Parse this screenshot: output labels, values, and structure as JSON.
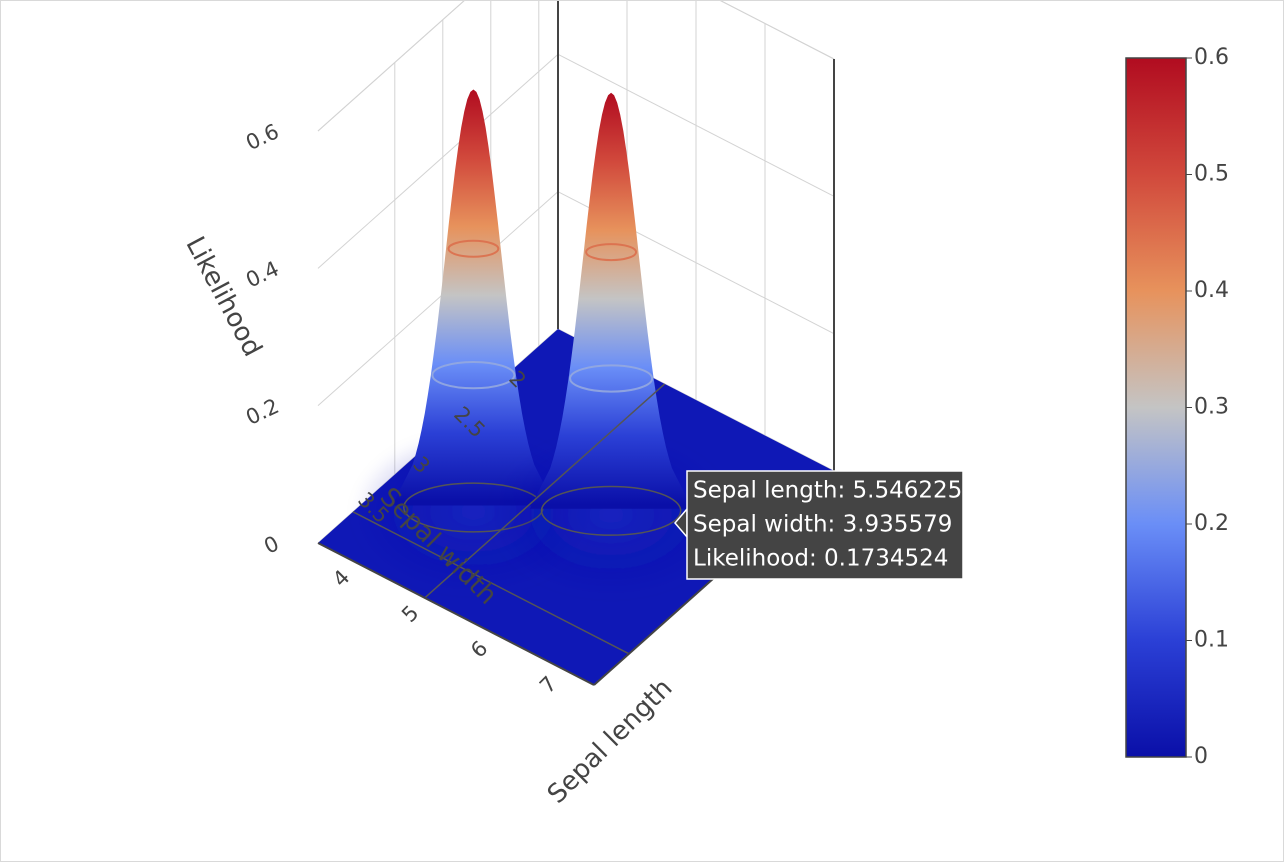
{
  "chart_data": {
    "type": "surface",
    "x_label": "Sepal length",
    "y_label": "Sepal width",
    "z_label": "Likelihood",
    "x_ticks": [
      "4",
      "5",
      "6",
      "7"
    ],
    "y_ticks": [
      "2",
      "2.5",
      "3",
      "3.5"
    ],
    "z_ticks": [
      "0",
      "0.2",
      "0.4",
      "0.6"
    ],
    "x_range": [
      4,
      8
    ],
    "y_range": [
      1.8,
      4.3
    ],
    "z_range": [
      0,
      0.6
    ],
    "peaks": [
      {
        "sepal_length": 5.0,
        "sepal_width": 3.4,
        "likelihood": 0.6
      },
      {
        "sepal_length": 6.3,
        "sepal_width": 2.9,
        "likelihood": 0.6
      }
    ],
    "colorscale": {
      "name": "coolwarm",
      "stops": [
        "#0a0fa8",
        "#2b40d6",
        "#6a8ef7",
        "#c4c4c4",
        "#e7925c",
        "#d1493c",
        "#b10c20"
      ]
    },
    "colorbar": {
      "ticks": [
        "0",
        "0.1",
        "0.2",
        "0.3",
        "0.4",
        "0.5",
        "0.6"
      ],
      "min": 0,
      "max": 0.6
    },
    "contour_levels": [
      0.2,
      0.4
    ],
    "hover": {
      "lines": [
        "Sepal length: 5.546225",
        "Sepal width: 3.935579",
        "Likelihood: 0.1734524"
      ]
    }
  }
}
